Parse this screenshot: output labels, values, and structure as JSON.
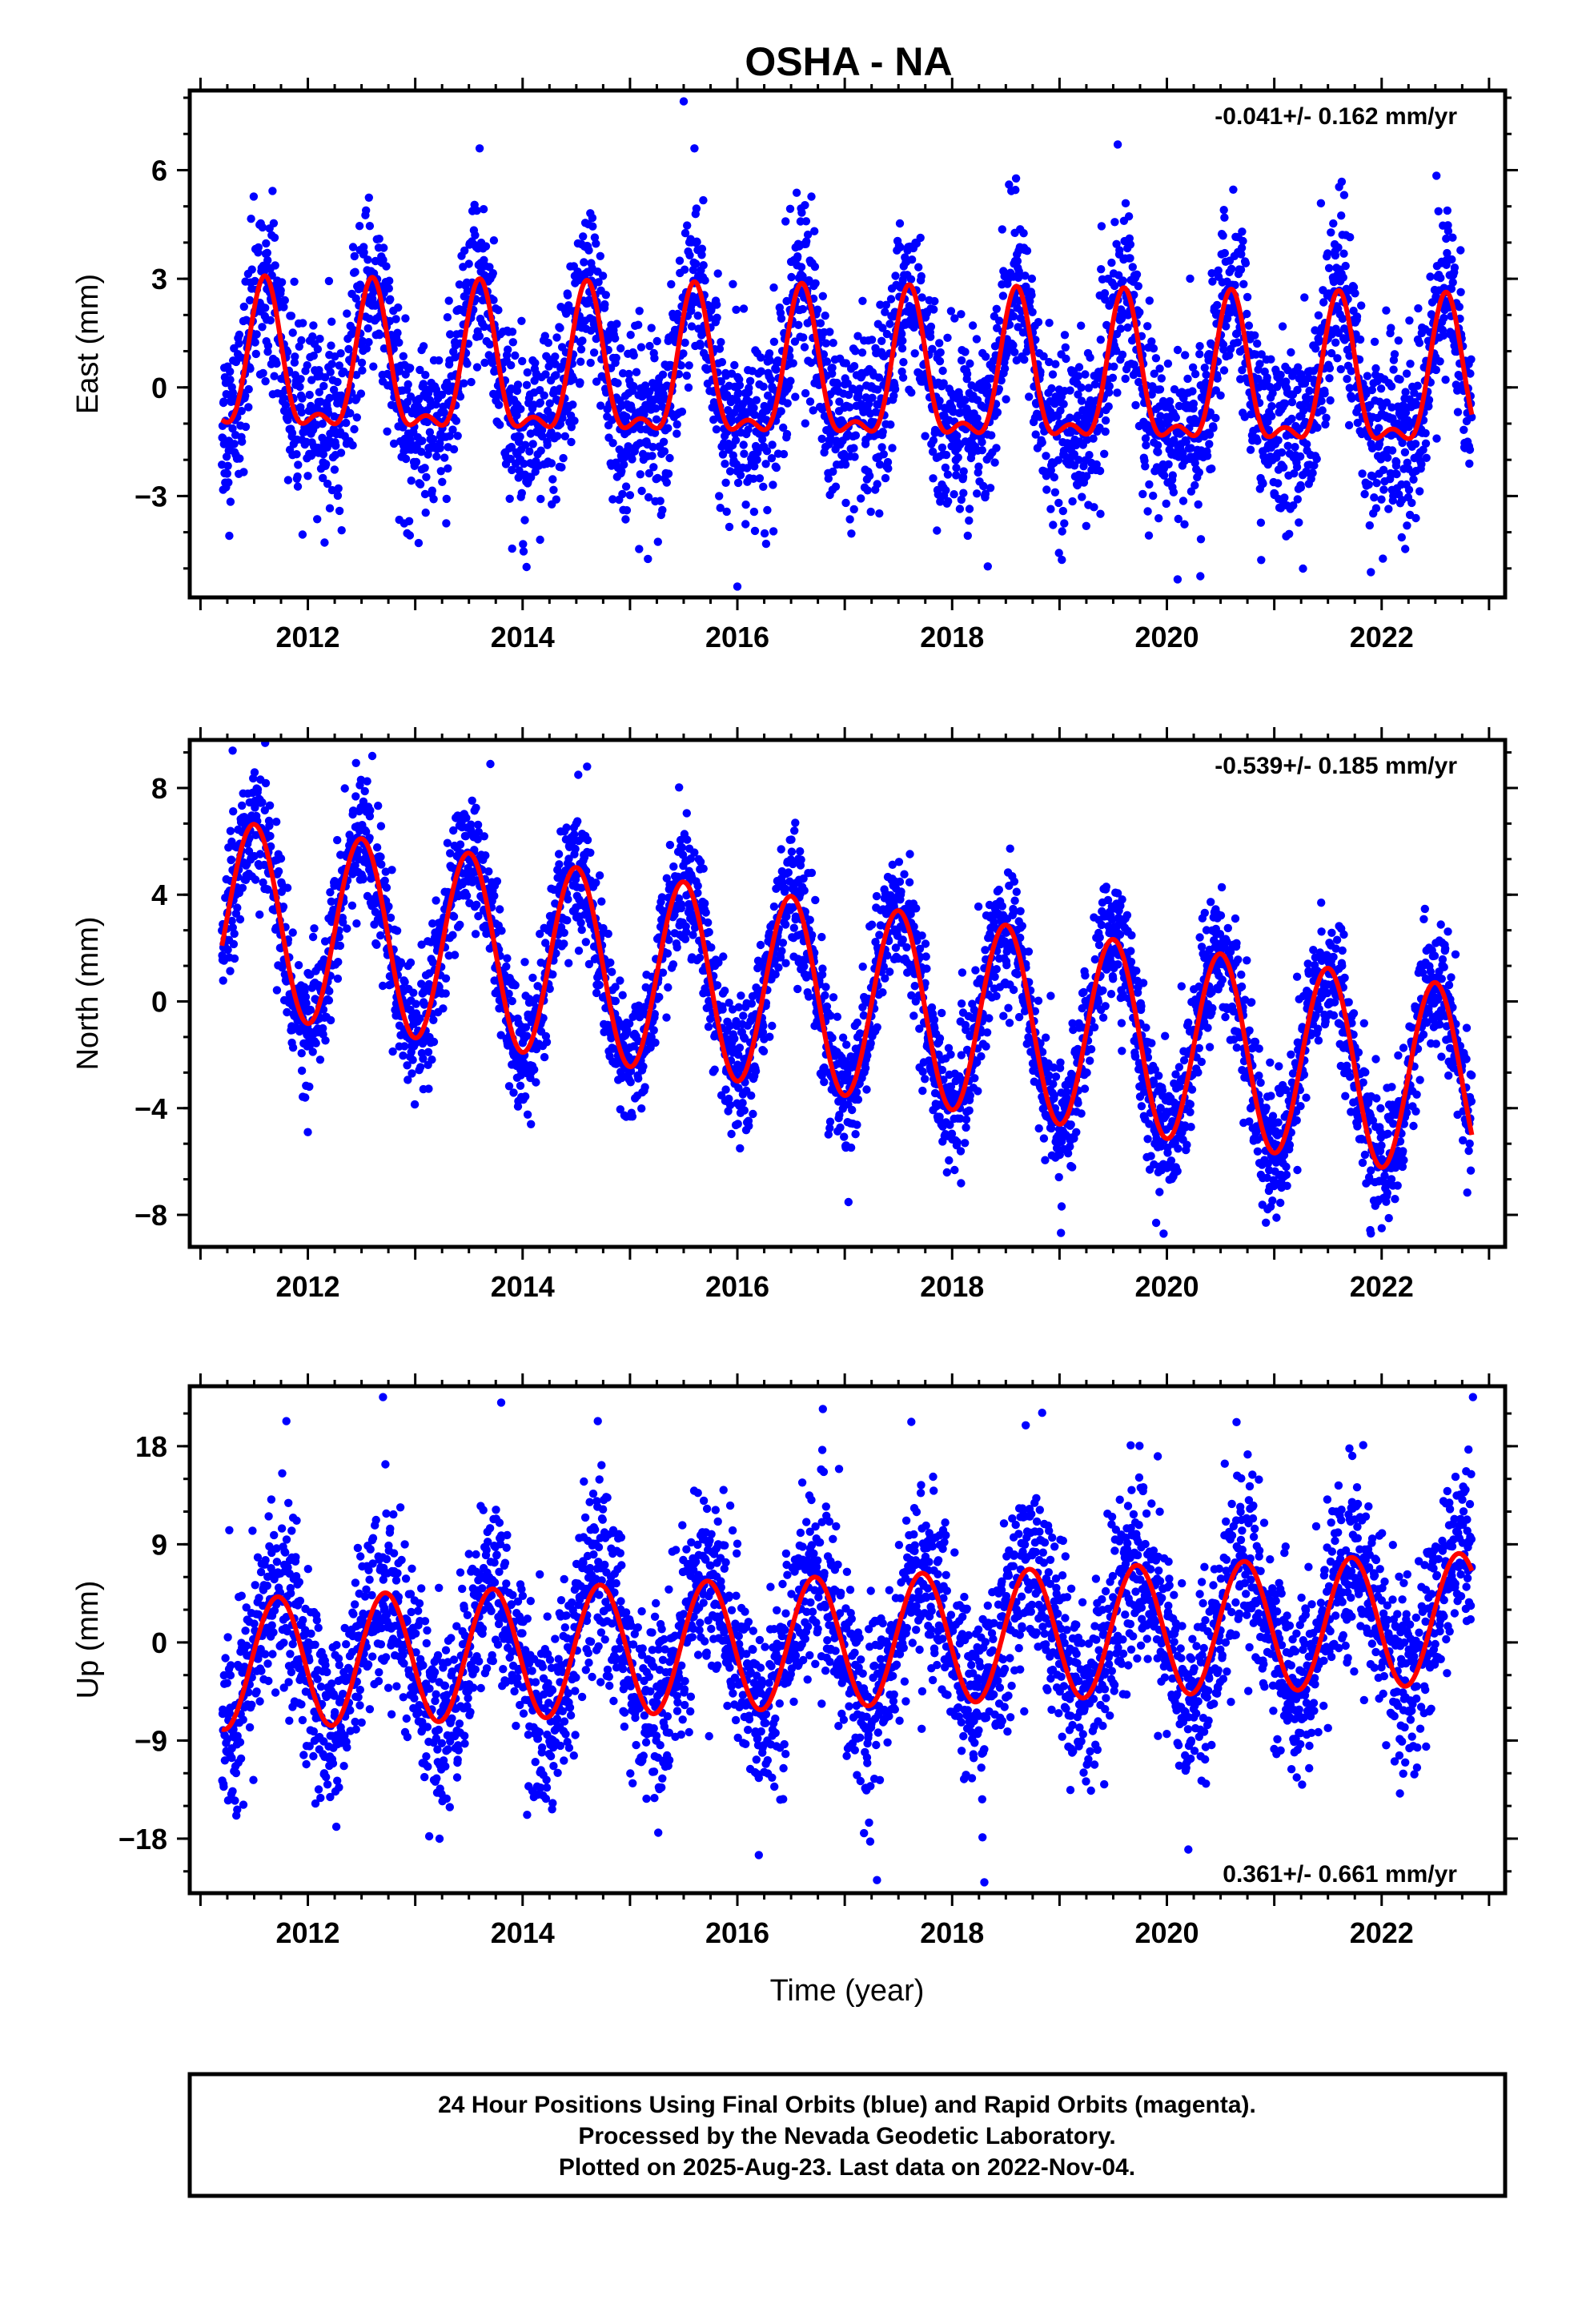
{
  "title": "OSHA - NA",
  "xlabel": "Time (year)",
  "footer": {
    "line1": "24 Hour Positions Using Final Orbits (blue) and Rapid Orbits (magenta).",
    "line2": "Processed by the Nevada Geodetic Laboratory.",
    "line3": "Plotted on 2025-Aug-23. Last data on 2022-Nov-04."
  },
  "colors": {
    "points": "#0000ff",
    "fit": "#ff0000",
    "frame": "#000000"
  },
  "chart_data": [
    {
      "type": "scatter",
      "component": "east",
      "ylabel": "East (mm)",
      "rate_text": "-0.041+/- 0.162 mm/yr",
      "rate_position": "top-right",
      "xlim": [
        2010.9,
        2023.15
      ],
      "ylim": [
        -5.8,
        8.2
      ],
      "xticks": [
        2012,
        2014,
        2016,
        2018,
        2020,
        2022
      ],
      "yticks": [
        -3,
        0,
        3,
        6
      ],
      "data_range": [
        2011.2,
        2022.84
      ],
      "fit": {
        "offset": 0.4,
        "rate": -0.041,
        "annual_amp": 1.9,
        "annual_peak": 2011.6,
        "semi_amp": 0.8,
        "semi_peak": 2011.6
      },
      "scatter": 1.2,
      "outliers": [
        [
          2015.5,
          7.9
        ],
        [
          2013.6,
          6.6
        ],
        [
          2015.6,
          6.6
        ],
        [
          2016.0,
          -5.5
        ],
        [
          2020.1,
          -5.3
        ],
        [
          2021.9,
          -5.1
        ],
        [
          2019.6,
          4.6
        ],
        [
          2020.7,
          4.3
        ]
      ],
      "series": [
        {
          "name": "final orbits",
          "color": "#0000ff"
        },
        {
          "name": "fit",
          "color": "#ff0000"
        }
      ]
    },
    {
      "type": "scatter",
      "component": "north",
      "ylabel": "North (mm)",
      "rate_text": "-0.539+/- 0.185 mm/yr",
      "rate_position": "top-right",
      "xlim": [
        2010.9,
        2023.15
      ],
      "ylim": [
        -9.2,
        9.8
      ],
      "xticks": [
        2012,
        2014,
        2016,
        2018,
        2020,
        2022
      ],
      "yticks": [
        -8,
        -4,
        0,
        4,
        8
      ],
      "data_range": [
        2011.2,
        2022.84
      ],
      "fit": {
        "offset": 3.2,
        "rate": -0.539,
        "annual_amp": 3.6,
        "annual_peak": 2011.5,
        "semi_amp": 0.0,
        "semi_peak": 2011.5
      },
      "scatter": 1.2,
      "outliers": [
        [
          2011.3,
          9.4
        ],
        [
          2012.6,
          9.2
        ],
        [
          2014.6,
          8.8
        ],
        [
          2013.7,
          8.9
        ],
        [
          2012.0,
          -4.9
        ],
        [
          2019.9,
          -8.3
        ],
        [
          2021.9,
          -8.7
        ],
        [
          2022.0,
          -8.5
        ]
      ],
      "series": [
        {
          "name": "final orbits",
          "color": "#0000ff"
        },
        {
          "name": "fit",
          "color": "#ff0000"
        }
      ]
    },
    {
      "type": "scatter",
      "component": "up",
      "ylabel": "Up (mm)",
      "rate_text": "0.361+/- 0.661 mm/yr",
      "rate_position": "bottom-right",
      "xlim": [
        2010.9,
        2023.15
      ],
      "ylim": [
        -23,
        23.5
      ],
      "xticks": [
        2012,
        2014,
        2016,
        2018,
        2020,
        2022
      ],
      "yticks": [
        -18,
        -9,
        0,
        9,
        18
      ],
      "data_range": [
        2011.2,
        2022.84
      ],
      "fit": {
        "offset": -2.0,
        "rate": 0.361,
        "annual_amp": 6.0,
        "annual_peak": 2011.72,
        "semi_amp": 0.0,
        "semi_peak": 2011.72
      },
      "scatter": 4.2,
      "outliers": [
        [
          2012.7,
          22.5
        ],
        [
          2013.8,
          22.0
        ],
        [
          2022.85,
          22.5
        ],
        [
          2011.8,
          20.3
        ],
        [
          2014.7,
          20.3
        ],
        [
          2017.3,
          -21.8
        ],
        [
          2018.3,
          -22.0
        ],
        [
          2016.2,
          -19.5
        ],
        [
          2020.2,
          -19.0
        ]
      ],
      "series": [
        {
          "name": "final orbits",
          "color": "#0000ff"
        },
        {
          "name": "fit",
          "color": "#ff0000"
        }
      ]
    }
  ]
}
